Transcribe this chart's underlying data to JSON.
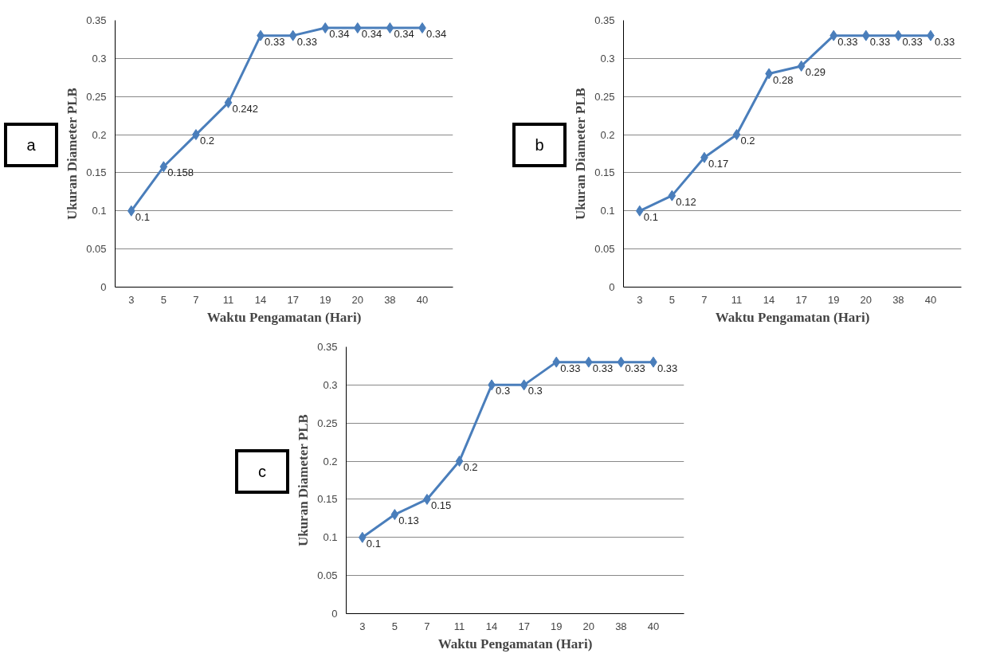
{
  "chart_data": [
    {
      "type": "line",
      "annotations": [
        "a"
      ],
      "xlabel": "Waktu Pengamatan (Hari)",
      "ylabel": "Ukuran Diameter PLB",
      "categories": [
        "3",
        "5",
        "7",
        "11",
        "14",
        "17",
        "19",
        "20",
        "38",
        "40"
      ],
      "series": [
        {
          "color": "#4a7ebb",
          "values": [
            0.1,
            0.158,
            0.2,
            0.242,
            0.33,
            0.33,
            0.34,
            0.34,
            0.34,
            0.34
          ]
        }
      ],
      "ylim": [
        0,
        0.35
      ],
      "yticks": [
        0,
        0.05,
        0.1,
        0.15,
        0.2,
        0.25,
        0.3,
        0.35
      ],
      "grid": "y",
      "marker": "diamond",
      "data_labels": true
    },
    {
      "type": "line",
      "annotations": [
        "b"
      ],
      "xlabel": "Waktu Pengamatan (Hari)",
      "ylabel": "Ukuran Diameter PLB",
      "categories": [
        "3",
        "5",
        "7",
        "11",
        "14",
        "17",
        "19",
        "20",
        "38",
        "40"
      ],
      "series": [
        {
          "color": "#4a7ebb",
          "values": [
            0.1,
            0.12,
            0.17,
            0.2,
            0.28,
            0.29,
            0.33,
            0.33,
            0.33,
            0.33
          ]
        }
      ],
      "ylim": [
        0,
        0.35
      ],
      "yticks": [
        0,
        0.05,
        0.1,
        0.15,
        0.2,
        0.25,
        0.3,
        0.35
      ],
      "grid": "y",
      "marker": "diamond",
      "data_labels": true
    },
    {
      "type": "line",
      "annotations": [
        "c"
      ],
      "xlabel": "Waktu Pengamatan (Hari)",
      "ylabel": "Ukuran Diameter PLB",
      "categories": [
        "3",
        "5",
        "7",
        "11",
        "14",
        "17",
        "19",
        "20",
        "38",
        "40"
      ],
      "series": [
        {
          "color": "#4a7ebb",
          "values": [
            0.1,
            0.13,
            0.15,
            0.2,
            0.3,
            0.3,
            0.33,
            0.33,
            0.33,
            0.33
          ]
        }
      ],
      "ylim": [
        0,
        0.35
      ],
      "yticks": [
        0,
        0.05,
        0.1,
        0.15,
        0.2,
        0.25,
        0.3,
        0.35
      ],
      "grid": "y",
      "marker": "diamond",
      "data_labels": true
    }
  ]
}
